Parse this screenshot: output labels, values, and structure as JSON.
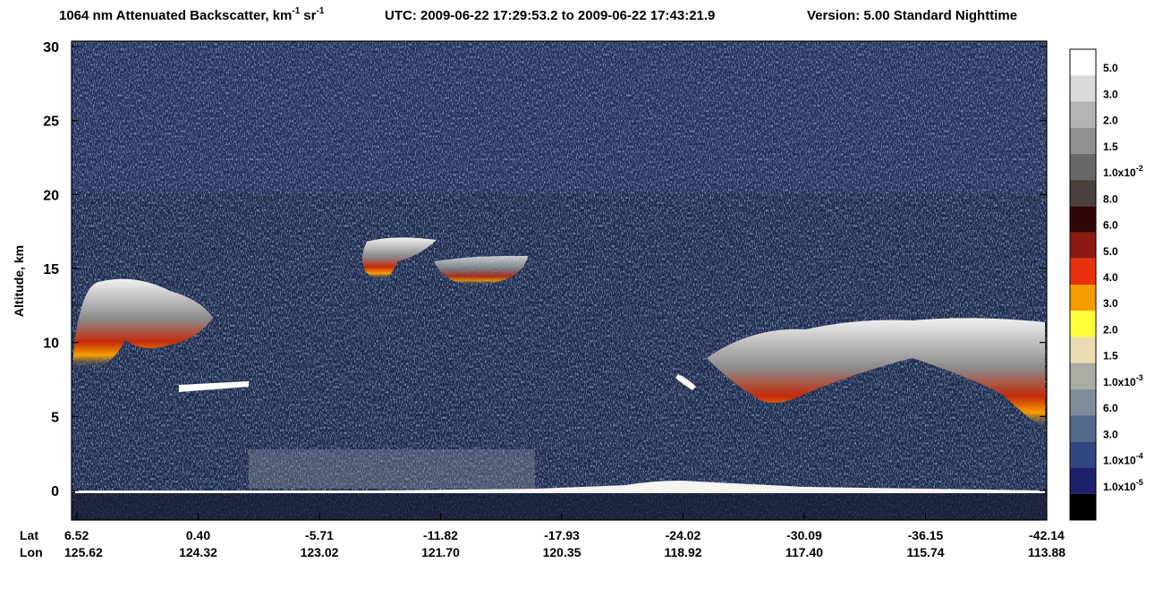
{
  "chart_data": {
    "type": "heatmap",
    "title": {
      "main": "1064 nm Attenuated Backscatter, km",
      "sup1": "-1",
      "unit2": "sr",
      "sup2": "-1",
      "utc": "UTC:  2009-06-22 17:29:53.2  to  2009-06-22 17:43:21.9",
      "version": "Version: 5.00  Standard  Nighttime"
    },
    "y_label": "Altitude, km",
    "ylim": [
      -2,
      30
    ],
    "yticks": [
      0,
      5,
      10,
      15,
      20,
      25,
      30
    ],
    "x_row_labels": [
      "Lat",
      "Lon"
    ],
    "x_labels": [
      {
        "lat": "6.52",
        "lon": "125.62"
      },
      {
        "lat": "0.40",
        "lon": "124.32"
      },
      {
        "lat": "-5.71",
        "lon": "123.02"
      },
      {
        "lat": "-11.82",
        "lon": "121.70"
      },
      {
        "lat": "-17.93",
        "lon": "120.35"
      },
      {
        "lat": "-24.02",
        "lon": "118.92"
      },
      {
        "lat": "-30.09",
        "lon": "117.40"
      },
      {
        "lat": "-36.15",
        "lon": "115.74"
      },
      {
        "lat": "-42.14",
        "lon": "113.88"
      }
    ],
    "colorbar": {
      "colors": [
        "#ffffff",
        "#d9d9d9",
        "#b3b3b3",
        "#8f8f8f",
        "#686868",
        "#4b403d",
        "#300606",
        "#8c1a12",
        "#e8300c",
        "#f59c00",
        "#ffff3c",
        "#eadcb0",
        "#a9ada3",
        "#7f8d9a",
        "#51698a",
        "#2f4682",
        "#1d206c",
        "#000000"
      ],
      "labels": [
        {
          "text": "5.0"
        },
        {
          "text": "3.0"
        },
        {
          "text": "2.0"
        },
        {
          "text": "1.5"
        },
        {
          "text": "1.0x10",
          "sup": "-2"
        },
        {
          "text": "8.0"
        },
        {
          "text": "6.0"
        },
        {
          "text": "5.0"
        },
        {
          "text": "4.0"
        },
        {
          "text": "3.0"
        },
        {
          "text": "2.0"
        },
        {
          "text": "1.5"
        },
        {
          "text": "1.0x10",
          "sup": "-3"
        },
        {
          "text": "6.0"
        },
        {
          "text": "3.0"
        },
        {
          "text": "1.0x10",
          "sup": "-4"
        },
        {
          "text": "1.0x10",
          "sup": "-5"
        }
      ]
    }
  }
}
